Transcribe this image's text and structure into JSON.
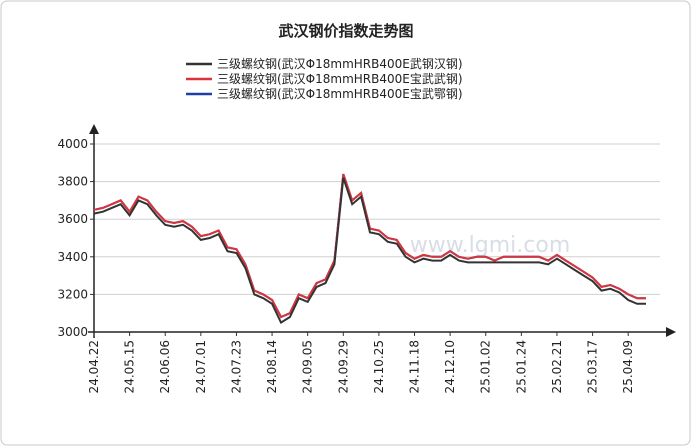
{
  "chart_data": {
    "type": "line",
    "title": "武汉钢价指数走势图",
    "watermark": "www.lgmi.com",
    "categories": [
      "24.04.22",
      null,
      null,
      null,
      "24.05.15",
      null,
      null,
      null,
      "24.06.06",
      null,
      null,
      null,
      "24.07.01",
      null,
      null,
      null,
      "24.07.23",
      null,
      null,
      null,
      "24.08.14",
      null,
      null,
      null,
      "24.09.05",
      null,
      null,
      null,
      "24.09.29",
      null,
      null,
      null,
      "24.10.25",
      null,
      null,
      null,
      "24.11.18",
      null,
      null,
      null,
      "24.12.10",
      null,
      null,
      null,
      "25.01.02",
      null,
      null,
      null,
      "25.01.24",
      null,
      null,
      null,
      "25.02.21",
      null,
      null,
      null,
      "25.03.17",
      null,
      null,
      null,
      "25.04.09",
      null,
      null
    ],
    "series": [
      {
        "name": "三级螺纹钢(武汉Φ18mmHRB400E武钢汉钢)",
        "color": "#333333",
        "values": [
          3630,
          3640,
          3660,
          3680,
          3620,
          3700,
          3680,
          3620,
          3570,
          3560,
          3570,
          3540,
          3490,
          3500,
          3520,
          3430,
          3420,
          3340,
          3200,
          3180,
          3150,
          3050,
          3080,
          3180,
          3160,
          3240,
          3260,
          3360,
          3820,
          3680,
          3720,
          3530,
          3520,
          3480,
          3470,
          3400,
          3370,
          3390,
          3380,
          3380,
          3410,
          3380,
          3370,
          3370,
          3370,
          3370,
          3370,
          3370,
          3370,
          3370,
          3370,
          3360,
          3390,
          3360,
          3330,
          3300,
          3270,
          3220,
          3230,
          3210,
          3170,
          3150,
          3150
        ]
      },
      {
        "name": "三级螺纹钢(武汉Φ18mmHRB400E宝武武钢)",
        "color": "#d9343a",
        "values": [
          3650,
          3660,
          3680,
          3700,
          3640,
          3720,
          3700,
          3640,
          3590,
          3580,
          3590,
          3560,
          3510,
          3520,
          3540,
          3450,
          3440,
          3360,
          3220,
          3200,
          3170,
          3080,
          3100,
          3200,
          3180,
          3260,
          3280,
          3380,
          3840,
          3700,
          3740,
          3550,
          3540,
          3500,
          3490,
          3420,
          3390,
          3410,
          3400,
          3400,
          3430,
          3400,
          3390,
          3400,
          3400,
          3380,
          3400,
          3400,
          3400,
          3400,
          3400,
          3380,
          3410,
          3380,
          3350,
          3320,
          3290,
          3240,
          3250,
          3230,
          3200,
          3180,
          3180
        ]
      },
      {
        "name": "三级螺纹钢(武汉Φ18mmHRB400E宝武鄂钢)",
        "color": "#1f3fa6",
        "values": [
          3650,
          3660,
          3680,
          3700,
          3640,
          3720,
          3700,
          3640,
          3590,
          3580,
          3590,
          3560,
          3510,
          3520,
          3540,
          3450,
          3440,
          3360,
          3220,
          3200,
          3170,
          3080,
          3100,
          3200,
          3180,
          3260,
          3280,
          3380,
          3840,
          3700,
          3740,
          3550,
          3540,
          3500,
          3490,
          3420,
          3390,
          3410,
          3400,
          3400,
          3430,
          3400,
          3390,
          3400,
          3400,
          3380,
          3400,
          3400,
          3400,
          3400,
          3400,
          3380,
          3410,
          3380,
          3350,
          3320,
          3290,
          3240,
          3250,
          3230,
          3200,
          3180,
          3180
        ]
      }
    ],
    "ylim": [
      3000,
      4000
    ],
    "yticks": [
      3000,
      3200,
      3400,
      3600,
      3800,
      4000
    ],
    "grid": true
  }
}
